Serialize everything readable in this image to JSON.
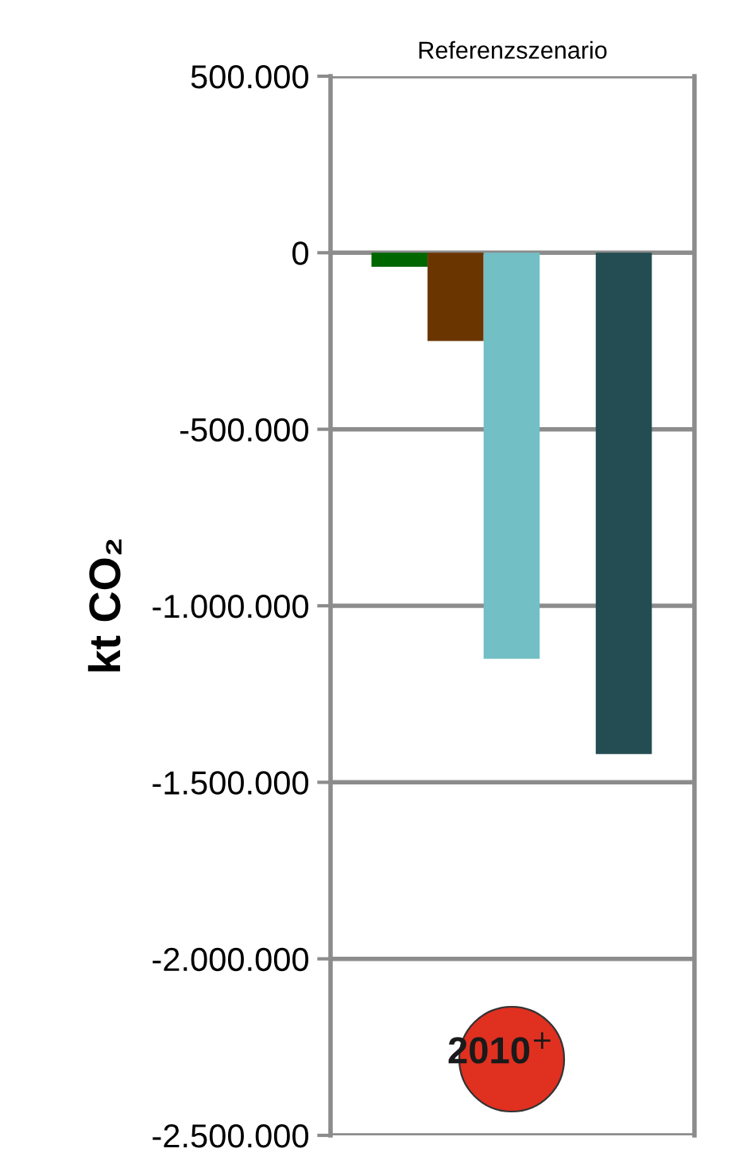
{
  "chart_data": {
    "type": "bar",
    "title": "Referenzszenario",
    "ylabel": "kt CO₂",
    "categories": [
      null,
      null,
      null,
      null,
      null
    ],
    "values": [
      -40000,
      -250000,
      -1150000,
      null,
      -1420000
    ],
    "colors": [
      "#006600",
      "#6b3500",
      "#72bfc5",
      null,
      "#234d52"
    ],
    "ylim": [
      -2500000,
      500000
    ],
    "yticks": [
      {
        "value": 500000,
        "label": "500.000"
      },
      0,
      {
        "value": -500000,
        "label": "-500.000"
      },
      {
        "value": -1000000,
        "label": "-1.000.000"
      },
      {
        "value": -1500000,
        "label": "-1.500.000"
      },
      {
        "value": -2000000,
        "label": "-2.000.000"
      },
      {
        "value": -2500000,
        "label": "-2.500.000"
      }
    ],
    "grid": "y",
    "tick_labels": "y",
    "annotations": [
      "2010$^{+}$"
    ]
  }
}
